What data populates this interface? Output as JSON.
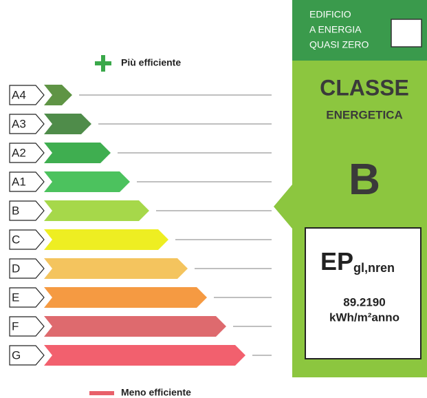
{
  "legend": {
    "top": "Più efficiente",
    "bottom": "Meno efficiente"
  },
  "classes": [
    {
      "label": "A4",
      "color": "#5f9445"
    },
    {
      "label": "A3",
      "color": "#4f8c4a"
    },
    {
      "label": "A2",
      "color": "#3fae50"
    },
    {
      "label": "A1",
      "color": "#4cc25e"
    },
    {
      "label": "B",
      "color": "#a6d84a"
    },
    {
      "label": "C",
      "color": "#eeee22"
    },
    {
      "label": "D",
      "color": "#f4c45e"
    },
    {
      "label": "E",
      "color": "#f59a42"
    },
    {
      "label": "F",
      "color": "#de6a6e"
    },
    {
      "label": "G",
      "color": "#f2606e"
    }
  ],
  "panel": {
    "nzeb": [
      "EDIFICIO",
      "A ENERGIA",
      "QUASI ZERO"
    ],
    "heading": [
      "CLASSE",
      "ENERGETICA"
    ],
    "class": "B",
    "indicator": "EP",
    "indicator_sub": "gl,nren",
    "value": "89.2190",
    "unit": "kWh/m²anno"
  }
}
